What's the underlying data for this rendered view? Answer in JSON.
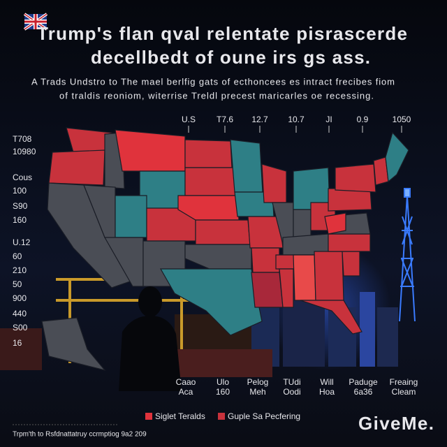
{
  "header": {
    "title_lines": [
      "Trump's flan qval relentate pisrascerde",
      "decellbedt of oune irs gs ass."
    ],
    "subtitle_lines": [
      "A Trads Undstro to The mael berlfig gats of ecthoncees es intract frecibes fiom",
      "of traldis reoniom, witerrise Treldl precest maricarles oe recessing."
    ]
  },
  "top_labels": [
    "U.S",
    "T7.6",
    "12.7",
    "10.7",
    "JI",
    "0.9",
    "1050"
  ],
  "left_labels": [
    "T708",
    "10980",
    "Cous",
    "100",
    "S90",
    "160",
    "U.12",
    "60",
    "210",
    "50",
    "900",
    "440",
    "S00",
    "16"
  ],
  "bottom_labels": [
    [
      "Caao",
      "Aca"
    ],
    [
      "Ulo",
      "160"
    ],
    [
      "Pelog",
      "Meh"
    ],
    [
      "TUdi",
      "Oodi"
    ],
    [
      "Will",
      "Hoa"
    ],
    [
      "Paduge",
      "6a36"
    ],
    [
      "Freaing",
      "Cleam"
    ]
  ],
  "legend": [
    {
      "label": "Siglet Teralds"
    },
    {
      "label": "Guple Sa Pecfering"
    }
  ],
  "footer": "Trpm'th to Rsfdnattatruy ccrmptiog 9a2 209",
  "brand": "GiveMe."
}
